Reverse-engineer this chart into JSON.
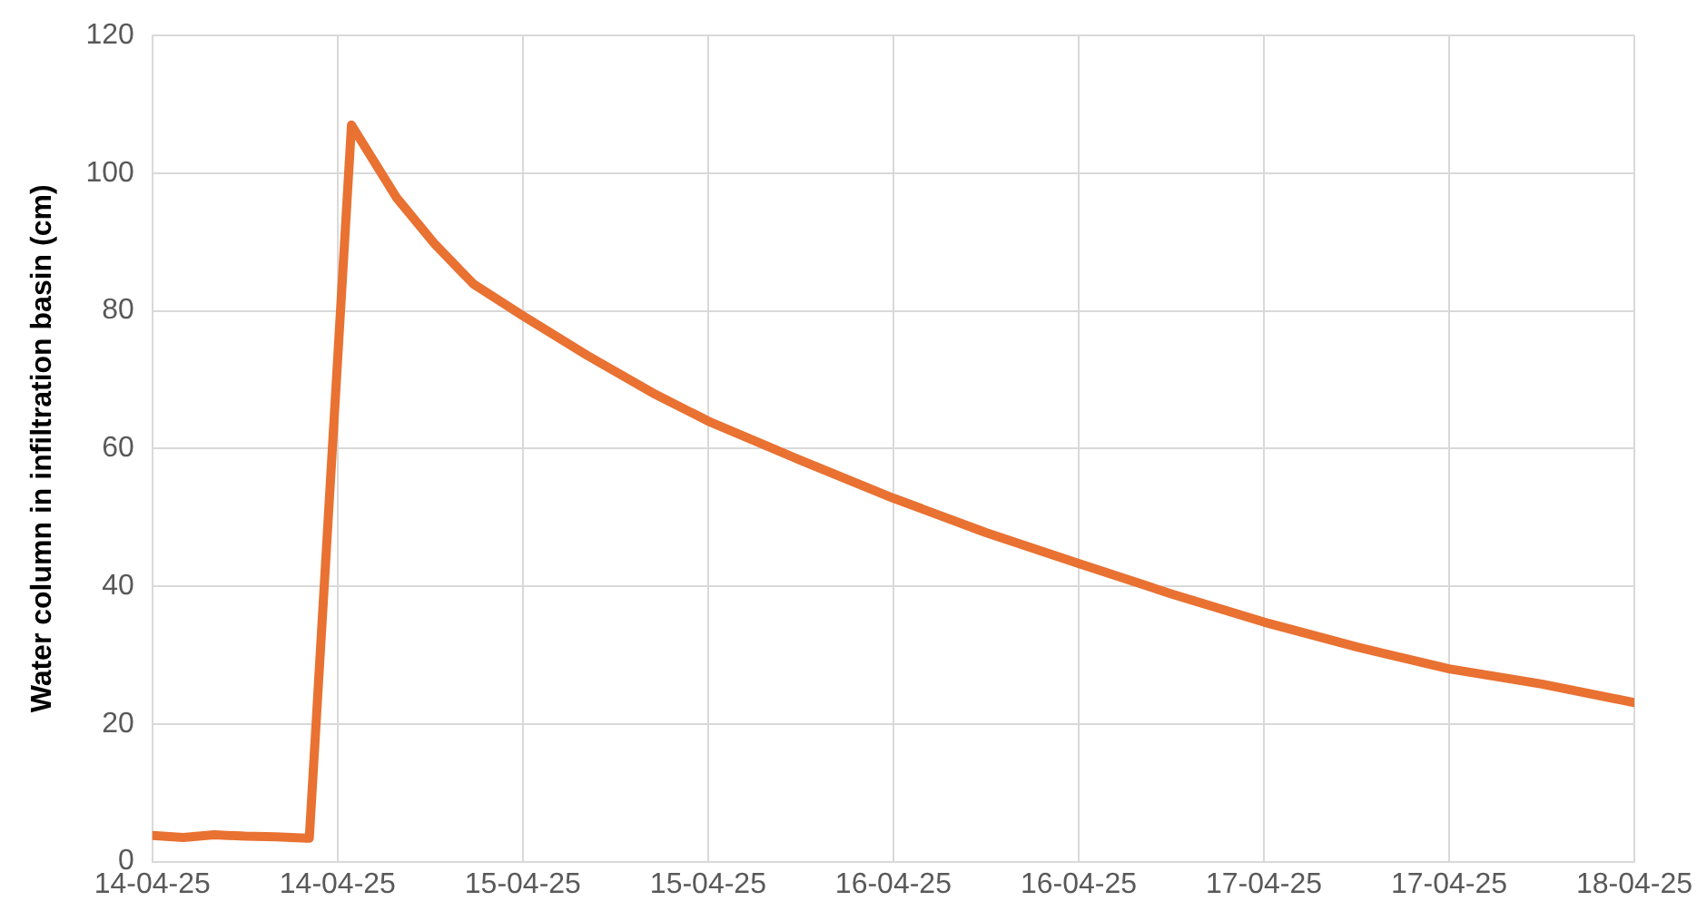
{
  "chart_data": {
    "type": "line",
    "ylabel": "Water column in infiltration basin (cm)",
    "x": [
      "--04-14T00:00",
      "--04-14T02:00",
      "--04-14T04:00",
      "--04-14T06:00",
      "--04-14T08:00",
      "--04-14T10:00",
      "--04-14T10:10",
      "--04-14T12:54",
      "--04-14T15:48",
      "--04-14T18:18",
      "--04-14T20:48",
      "--04-15T00:00",
      "--04-15T04:12",
      "--04-15T08:24",
      "--04-15T12:00",
      "--04-15T18:00",
      "--04-16T00:00",
      "--04-16T06:00",
      "--04-16T12:00",
      "--04-16T18:00",
      "--04-17T00:00",
      "--04-17T06:00",
      "--04-17T12:00",
      "--04-17T18:00",
      "--04-18T00:00"
    ],
    "series": [
      {
        "color": "#e97132",
        "values": [
          3.8,
          3.5,
          3.9,
          3.7,
          3.6,
          3.4,
          3.4,
          107,
          96.5,
          89.7,
          83.9,
          79.3,
          73.5,
          68.1,
          64,
          58.3,
          52.8,
          47.8,
          43.3,
          38.9,
          34.8,
          31.2,
          28,
          25.8,
          23.1
        ]
      }
    ],
    "xlim": [
      "--04-14T00:00",
      "--04-18T00:00"
    ],
    "xticks": [
      {
        "value": "--04-14T00:00",
        "label": "14-04-25"
      },
      {
        "value": "--04-14T12:00",
        "label": "14-04-25"
      },
      {
        "value": "--04-15T00:00",
        "label": "15-04-25"
      },
      {
        "value": "--04-15T12:00",
        "label": "15-04-25"
      },
      {
        "value": "--04-16T00:00",
        "label": "16-04-25"
      },
      {
        "value": "--04-16T12:00",
        "label": "16-04-25"
      },
      {
        "value": "--04-17T00:00",
        "label": "17-04-25"
      },
      {
        "value": "--04-17T12:00",
        "label": "17-04-25"
      },
      {
        "value": "--04-18T00:00",
        "label": "18-04-25"
      }
    ],
    "ylim": [
      0,
      120
    ],
    "yticks": [
      0,
      20,
      40,
      60,
      80,
      100,
      120
    ],
    "grid": true,
    "legend": false,
    "marker": "none",
    "line_style": "solid"
  }
}
